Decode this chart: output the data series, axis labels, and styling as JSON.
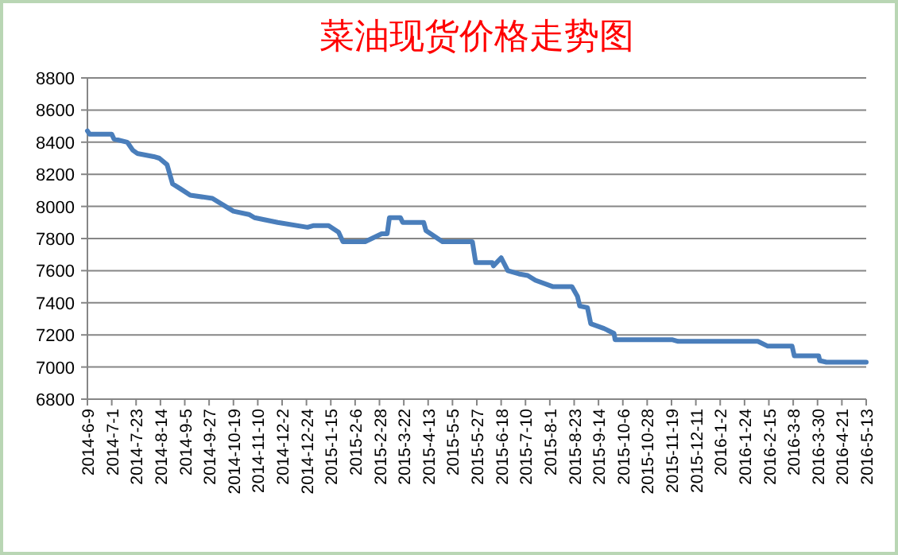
{
  "chart_data": {
    "type": "line",
    "title": "菜油现货价格走势图",
    "grid": "y",
    "marker": "none",
    "line_style": "solid",
    "xlim": [
      "2014-06-09",
      "2016-05-13"
    ],
    "xticks": [
      {
        "value": "2014-06-09",
        "label": "2014-6-9"
      },
      {
        "value": "2014-07-01",
        "label": "2014-7-1"
      },
      {
        "value": "2014-07-23",
        "label": "2014-7-23"
      },
      {
        "value": "2014-08-14",
        "label": "2014-8-14"
      },
      {
        "value": "2014-09-05",
        "label": "2014-9-5"
      },
      {
        "value": "2014-09-27",
        "label": "2014-9-27"
      },
      {
        "value": "2014-10-19",
        "label": "2014-10-19"
      },
      {
        "value": "2014-11-10",
        "label": "2014-11-10"
      },
      {
        "value": "2014-12-02",
        "label": "2014-12-2"
      },
      {
        "value": "2014-12-24",
        "label": "2014-12-24"
      },
      {
        "value": "2015-01-15",
        "label": "2015-1-15"
      },
      {
        "value": "2015-02-06",
        "label": "2015-2-6"
      },
      {
        "value": "2015-02-28",
        "label": "2015-2-28"
      },
      {
        "value": "2015-03-22",
        "label": "2015-3-22"
      },
      {
        "value": "2015-04-13",
        "label": "2015-4-13"
      },
      {
        "value": "2015-05-05",
        "label": "2015-5-5"
      },
      {
        "value": "2015-05-27",
        "label": "2015-5-27"
      },
      {
        "value": "2015-06-18",
        "label": "2015-6-18"
      },
      {
        "value": "2015-07-10",
        "label": "2015-7-10"
      },
      {
        "value": "2015-08-01",
        "label": "2015-8-1"
      },
      {
        "value": "2015-08-23",
        "label": "2015-8-23"
      },
      {
        "value": "2015-09-14",
        "label": "2015-9-14"
      },
      {
        "value": "2015-10-06",
        "label": "2015-10-6"
      },
      {
        "value": "2015-10-28",
        "label": "2015-10-28"
      },
      {
        "value": "2015-11-19",
        "label": "2015-11-19"
      },
      {
        "value": "2015-12-11",
        "label": "2015-12-11"
      },
      {
        "value": "2016-01-02",
        "label": "2016-1-2"
      },
      {
        "value": "2016-01-24",
        "label": "2016-1-24"
      },
      {
        "value": "2016-02-15",
        "label": "2016-2-15"
      },
      {
        "value": "2016-03-08",
        "label": "2016-3-8"
      },
      {
        "value": "2016-03-30",
        "label": "2016-3-30"
      },
      {
        "value": "2016-04-21",
        "label": "2016-4-21"
      },
      {
        "value": "2016-05-13",
        "label": "2016-5-13"
      }
    ],
    "ylim": [
      6800,
      8800
    ],
    "yticks": [
      6800,
      7000,
      7200,
      7400,
      7600,
      7800,
      8000,
      8200,
      8400,
      8600,
      8800
    ],
    "x": [
      "2014-06-09",
      "2014-06-11",
      "2014-07-01",
      "2014-07-03",
      "2014-07-15",
      "2014-07-20",
      "2014-07-24",
      "2014-08-08",
      "2014-08-13",
      "2014-08-20",
      "2014-08-25",
      "2014-09-01",
      "2014-09-10",
      "2014-09-30",
      "2014-10-19",
      "2014-11-02",
      "2014-11-07",
      "2014-11-28",
      "2014-12-25",
      "2014-12-30",
      "2015-01-13",
      "2015-01-22",
      "2015-01-26",
      "2015-02-15",
      "2015-03-02",
      "2015-03-07",
      "2015-03-09",
      "2015-03-19",
      "2015-03-21",
      "2015-04-09",
      "2015-04-11",
      "2015-04-26",
      "2015-05-23",
      "2015-05-26",
      "2015-06-10",
      "2015-06-11",
      "2015-06-18",
      "2015-06-24",
      "2015-07-04",
      "2015-07-12",
      "2015-07-19",
      "2015-08-04",
      "2015-08-21",
      "2015-08-26",
      "2015-08-28",
      "2015-09-04",
      "2015-09-07",
      "2015-09-19",
      "2015-09-28",
      "2015-09-29",
      "2015-11-20",
      "2015-11-25",
      "2016-02-05",
      "2016-02-14",
      "2016-03-07",
      "2016-03-09",
      "2016-03-31",
      "2016-04-01",
      "2016-04-07",
      "2016-05-13"
    ],
    "series": [
      {
        "color": "#4a7ebb",
        "values": [
          8470,
          8450,
          8450,
          8420,
          8400,
          8350,
          8330,
          8310,
          8300,
          8260,
          8140,
          8110,
          8070,
          8050,
          7970,
          7950,
          7930,
          7900,
          7870,
          7880,
          7880,
          7840,
          7780,
          7780,
          7830,
          7830,
          7930,
          7930,
          7900,
          7900,
          7850,
          7780,
          7780,
          7650,
          7650,
          7630,
          7680,
          7600,
          7580,
          7570,
          7540,
          7500,
          7500,
          7440,
          7380,
          7370,
          7270,
          7240,
          7210,
          7170,
          7170,
          7160,
          7160,
          7130,
          7130,
          7070,
          7070,
          7040,
          7030,
          7030
        ]
      }
    ]
  }
}
